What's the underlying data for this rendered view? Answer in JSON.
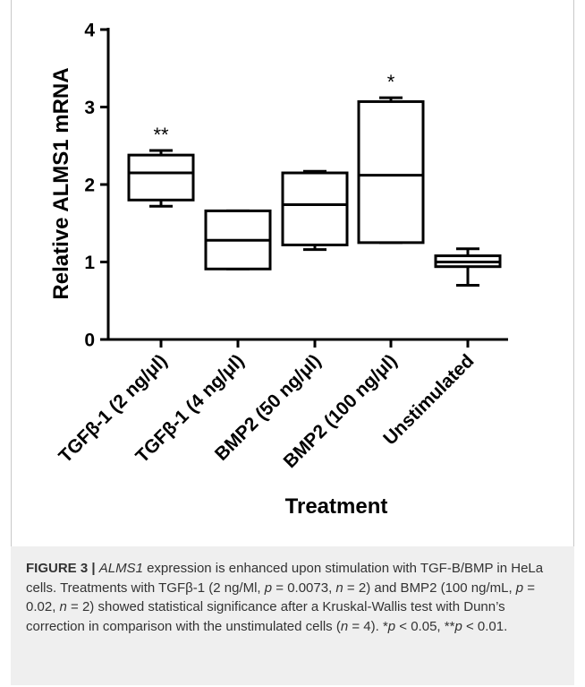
{
  "chart_data": {
    "type": "box",
    "ylabel": "Relative ALMS1 mRNA",
    "xlabel": "Treatment",
    "ylim": [
      0,
      4
    ],
    "yticks": [
      "0",
      "1",
      "2",
      "3",
      "4"
    ],
    "categories": [
      "TGFβ-1 (2 ng/μl)",
      "TGFβ-1 (4 ng/μl)",
      "BMP2 (50 ng/μl)",
      "BMP2 (100 ng/μl)",
      "Unstimulated"
    ],
    "boxes": [
      {
        "min": 1.72,
        "q1": 1.8,
        "median": 2.15,
        "q3": 2.38,
        "max": 2.44,
        "annotation": "**"
      },
      {
        "min": 0.91,
        "q1": 0.91,
        "median": 1.28,
        "q3": 1.66,
        "max": 1.66,
        "annotation": ""
      },
      {
        "min": 1.16,
        "q1": 1.22,
        "median": 1.74,
        "q3": 2.15,
        "max": 2.17,
        "annotation": ""
      },
      {
        "min": 1.25,
        "q1": 1.25,
        "median": 2.12,
        "q3": 3.07,
        "max": 3.12,
        "annotation": "*"
      },
      {
        "min": 0.7,
        "q1": 0.94,
        "median": 1.0,
        "q3": 1.08,
        "max": 1.17,
        "annotation": ""
      }
    ],
    "grid": false,
    "legend": "none"
  },
  "caption": {
    "label": "FIGURE 3 |",
    "gene": "ALMS1",
    "p1": " expression is enhanced upon stimulation with TGF-B/BMP in HeLa cells. Treatments with TGFβ-1 (2 ng/Ml, ",
    "p": "p",
    "n": "n",
    "eq1": " = 0.0073, ",
    "eq2": " = 2) and BMP2 (100 ng/mL, ",
    "eq3": " = 0.02, ",
    "eq4": " = 2) showed statistical significance after a Kruskal-Wallis test with Dunn’s correction in comparison with the unstimulated cells (",
    "eq5": " = 4). *",
    "eq6": " < 0.05, **",
    "eq7": " < 0.01."
  }
}
